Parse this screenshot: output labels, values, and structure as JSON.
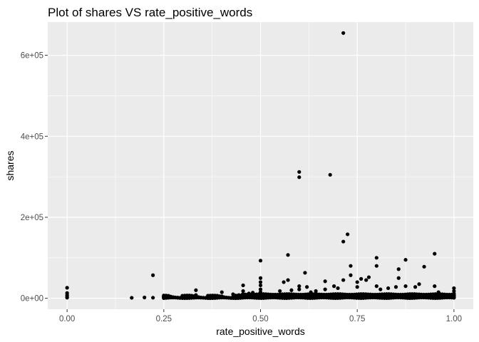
{
  "chart_data": {
    "type": "scatter",
    "title": "Plot of shares VS rate_positive_words",
    "xlabel": "rate_positive_words",
    "ylabel": "shares",
    "xlim": [
      -0.05,
      1.05
    ],
    "ylim": [
      -27000,
      682000
    ],
    "x_ticks": [
      0.0,
      0.25,
      0.5,
      0.75,
      1.0
    ],
    "x_tick_labels": [
      "0.00",
      "0.25",
      "0.50",
      "0.75",
      "1.00"
    ],
    "y_ticks": [
      0,
      200000,
      400000,
      600000
    ],
    "y_tick_labels": [
      "0e+00",
      "2e+05",
      "4e+05",
      "6e+05"
    ],
    "grid": true,
    "legend": "none",
    "colors": {
      "panel": "#ebebeb",
      "grid_major": "#ffffff",
      "point": "#000000",
      "tick": "#333333"
    },
    "points": [
      {
        "x": 0.0,
        "y": 26000
      },
      {
        "x": 0.0,
        "y": 13000
      },
      {
        "x": 0.0,
        "y": 8000
      },
      {
        "x": 0.0,
        "y": 4000
      },
      {
        "x": 0.0,
        "y": 1500
      },
      {
        "x": 0.167,
        "y": 1200
      },
      {
        "x": 0.2,
        "y": 2000
      },
      {
        "x": 0.222,
        "y": 57000
      },
      {
        "x": 0.222,
        "y": 1500
      },
      {
        "x": 0.25,
        "y": 4000
      },
      {
        "x": 0.25,
        "y": 1000
      },
      {
        "x": 0.286,
        "y": 1500
      },
      {
        "x": 0.3,
        "y": 2000
      },
      {
        "x": 0.333,
        "y": 20000
      },
      {
        "x": 0.333,
        "y": 8000
      },
      {
        "x": 0.333,
        "y": 3000
      },
      {
        "x": 0.4,
        "y": 15000
      },
      {
        "x": 0.4,
        "y": 5000
      },
      {
        "x": 0.429,
        "y": 10000
      },
      {
        "x": 0.444,
        "y": 8000
      },
      {
        "x": 0.455,
        "y": 32000
      },
      {
        "x": 0.455,
        "y": 18000
      },
      {
        "x": 0.47,
        "y": 12000
      },
      {
        "x": 0.48,
        "y": 14000
      },
      {
        "x": 0.5,
        "y": 93000
      },
      {
        "x": 0.5,
        "y": 50000
      },
      {
        "x": 0.5,
        "y": 40000
      },
      {
        "x": 0.5,
        "y": 32000
      },
      {
        "x": 0.5,
        "y": 22000
      },
      {
        "x": 0.5,
        "y": 15000
      },
      {
        "x": 0.5,
        "y": 10000
      },
      {
        "x": 0.55,
        "y": 18000
      },
      {
        "x": 0.56,
        "y": 40000
      },
      {
        "x": 0.571,
        "y": 107000
      },
      {
        "x": 0.571,
        "y": 45000
      },
      {
        "x": 0.58,
        "y": 20000
      },
      {
        "x": 0.6,
        "y": 312000
      },
      {
        "x": 0.6,
        "y": 299000
      },
      {
        "x": 0.6,
        "y": 30000
      },
      {
        "x": 0.6,
        "y": 22000
      },
      {
        "x": 0.615,
        "y": 63000
      },
      {
        "x": 0.62,
        "y": 28000
      },
      {
        "x": 0.63,
        "y": 15000
      },
      {
        "x": 0.643,
        "y": 18000
      },
      {
        "x": 0.667,
        "y": 42000
      },
      {
        "x": 0.667,
        "y": 22000
      },
      {
        "x": 0.68,
        "y": 305000
      },
      {
        "x": 0.69,
        "y": 30000
      },
      {
        "x": 0.7,
        "y": 25000
      },
      {
        "x": 0.714,
        "y": 655000
      },
      {
        "x": 0.714,
        "y": 140000
      },
      {
        "x": 0.714,
        "y": 45000
      },
      {
        "x": 0.725,
        "y": 158000
      },
      {
        "x": 0.733,
        "y": 80000
      },
      {
        "x": 0.733,
        "y": 57000
      },
      {
        "x": 0.75,
        "y": 40000
      },
      {
        "x": 0.75,
        "y": 28000
      },
      {
        "x": 0.76,
        "y": 48000
      },
      {
        "x": 0.773,
        "y": 45000
      },
      {
        "x": 0.78,
        "y": 52000
      },
      {
        "x": 0.8,
        "y": 100000
      },
      {
        "x": 0.8,
        "y": 80000
      },
      {
        "x": 0.8,
        "y": 30000
      },
      {
        "x": 0.81,
        "y": 22000
      },
      {
        "x": 0.83,
        "y": 25000
      },
      {
        "x": 0.85,
        "y": 28000
      },
      {
        "x": 0.857,
        "y": 72000
      },
      {
        "x": 0.857,
        "y": 50000
      },
      {
        "x": 0.875,
        "y": 95000
      },
      {
        "x": 0.875,
        "y": 30000
      },
      {
        "x": 0.9,
        "y": 28000
      },
      {
        "x": 0.91,
        "y": 35000
      },
      {
        "x": 0.923,
        "y": 78000
      },
      {
        "x": 0.95,
        "y": 110000
      },
      {
        "x": 0.95,
        "y": 30000
      },
      {
        "x": 0.96,
        "y": 15000
      },
      {
        "x": 1.0,
        "y": 25000
      },
      {
        "x": 1.0,
        "y": 18000
      },
      {
        "x": 1.0,
        "y": 12000
      },
      {
        "x": 1.0,
        "y": 8000
      },
      {
        "x": 1.0,
        "y": 4000
      },
      {
        "x": 1.0,
        "y": 1500
      }
    ],
    "dense_band": {
      "x_range": [
        0.25,
        1.0
      ],
      "y_values": [
        500,
        1500,
        3000,
        5000,
        7000,
        9000
      ]
    }
  }
}
